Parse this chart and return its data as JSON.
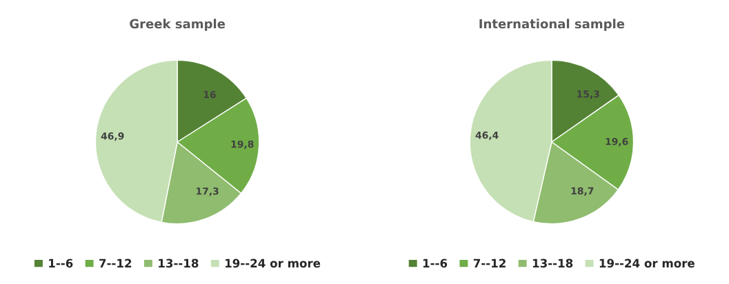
{
  "chart_data": [
    {
      "type": "pie",
      "title": "Greek sample",
      "categories": [
        "1--6",
        "7--12",
        "13--18",
        "19--24 or more"
      ],
      "values": [
        16,
        19.8,
        17.3,
        46.9
      ],
      "value_labels": [
        "16",
        "19,8",
        "17,3",
        "46,9"
      ],
      "colors": [
        "#548235",
        "#70ad47",
        "#8fbc6e",
        "#c5e0b4"
      ],
      "legend": "bottom"
    },
    {
      "type": "pie",
      "title": "International sample",
      "categories": [
        "1--6",
        "7--12",
        "13--18",
        "19--24 or more"
      ],
      "values": [
        15.3,
        19.6,
        18.7,
        46.4
      ],
      "value_labels": [
        "15,3",
        "19,6",
        "18,7",
        "46,4"
      ],
      "colors": [
        "#548235",
        "#70ad47",
        "#8fbc6e",
        "#c5e0b4"
      ],
      "legend": "bottom"
    }
  ]
}
